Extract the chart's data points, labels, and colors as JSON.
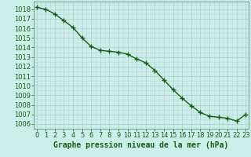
{
  "x": [
    0,
    1,
    2,
    3,
    4,
    5,
    6,
    7,
    8,
    9,
    10,
    11,
    12,
    13,
    14,
    15,
    16,
    17,
    18,
    19,
    20,
    21,
    22,
    23
  ],
  "y": [
    1018.2,
    1018.0,
    1017.5,
    1016.8,
    1016.1,
    1015.0,
    1014.1,
    1013.7,
    1013.6,
    1013.5,
    1013.3,
    1012.8,
    1012.4,
    1011.6,
    1010.6,
    1009.6,
    1008.7,
    1007.9,
    1007.2,
    1006.8,
    1006.7,
    1006.6,
    1006.3,
    1007.0
  ],
  "line_color": "#1a5c1a",
  "marker": "+",
  "markersize": 4,
  "linewidth": 1.0,
  "bg_color": "#cceee8",
  "grid_color": "#99cccc",
  "tick_label_color": "#1a5c1a",
  "xlabel": "Graphe pression niveau de la mer (hPa)",
  "xlabel_color": "#1a5c1a",
  "xlabel_fontsize": 7,
  "tick_fontsize": 6,
  "ylim": [
    1005.5,
    1018.8
  ],
  "yticks": [
    1006,
    1007,
    1008,
    1009,
    1010,
    1011,
    1012,
    1013,
    1014,
    1015,
    1016,
    1017,
    1018
  ],
  "xticks": [
    0,
    1,
    2,
    3,
    4,
    5,
    6,
    7,
    8,
    9,
    10,
    11,
    12,
    13,
    14,
    15,
    16,
    17,
    18,
    19,
    20,
    21,
    22,
    23
  ],
  "grid_major_color": "#aacccc",
  "grid_minor_color": "#bcd9d6",
  "spine_color": "#5a8a7a"
}
